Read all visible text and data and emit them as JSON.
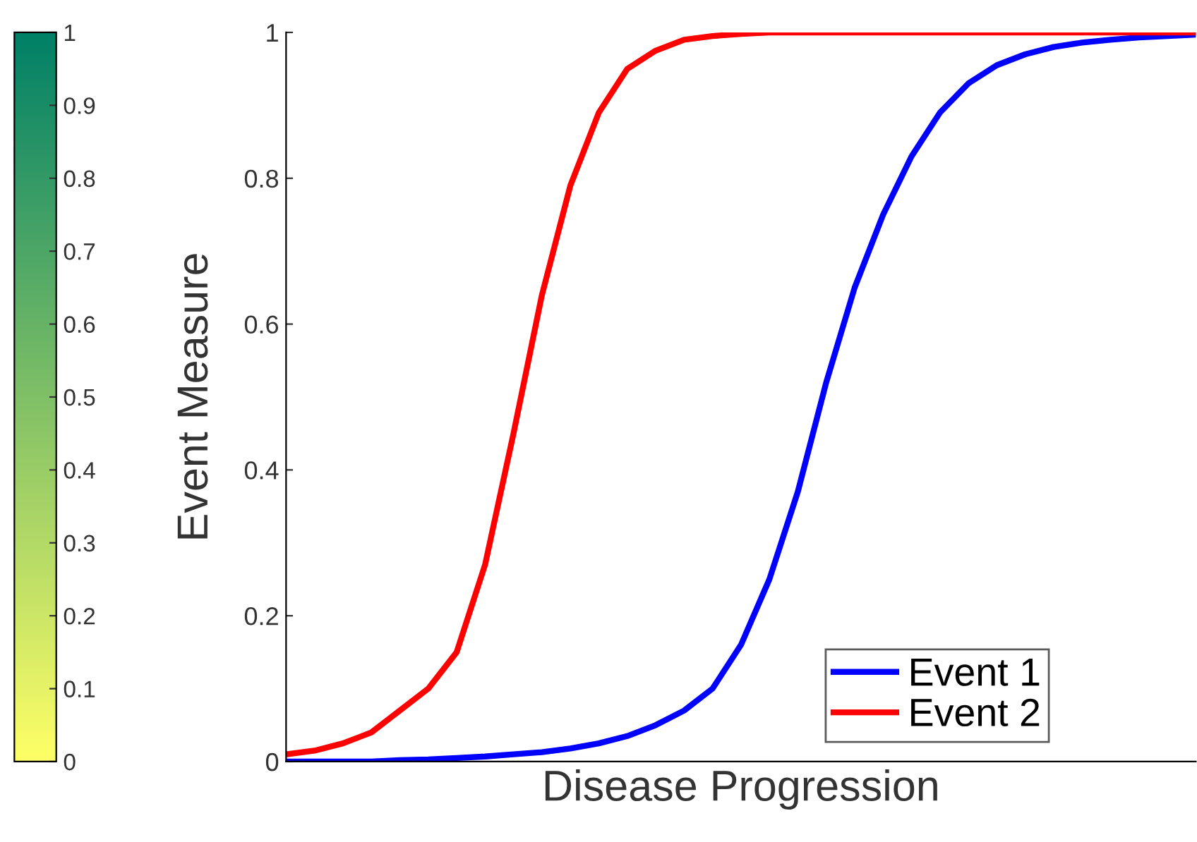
{
  "chart_data": {
    "type": "line",
    "xlabel": "Disease Progression",
    "ylabel": "Event Measure",
    "categories": [
      null,
      null,
      null,
      null,
      null,
      null,
      null,
      null,
      null,
      null,
      null,
      null,
      null,
      null,
      null,
      null,
      null,
      null,
      null,
      null,
      null,
      null,
      null,
      null,
      null,
      null,
      null,
      null,
      null,
      null,
      null,
      null,
      null
    ],
    "series": [
      {
        "name": "Event 1",
        "color": "#0000ff",
        "values": [
          0,
          0,
          0,
          0,
          0.002,
          0.003,
          0.005,
          0.007,
          0.01,
          0.013,
          0.018,
          0.025,
          0.035,
          0.05,
          0.07,
          0.1,
          0.16,
          0.25,
          0.37,
          0.52,
          0.65,
          0.75,
          0.83,
          0.89,
          0.93,
          0.955,
          0.97,
          0.98,
          0.986,
          0.99,
          0.993,
          0.995,
          0.997
        ]
      },
      {
        "name": "Event 2",
        "color": "#ff0000",
        "values": [
          0.01,
          0.015,
          0.025,
          0.04,
          0.07,
          0.1,
          0.15,
          0.27,
          0.45,
          0.64,
          0.79,
          0.89,
          0.95,
          0.975,
          0.99,
          0.995,
          0.998,
          1,
          1,
          1,
          1,
          1,
          1,
          1,
          1,
          1,
          1,
          1,
          1,
          1,
          1,
          1,
          1
        ]
      }
    ],
    "ylim": [
      0,
      1
    ],
    "yticks": [
      0,
      0.2,
      0.4,
      0.6,
      0.8,
      1
    ],
    "tick_labels": "y",
    "grid": false,
    "legend": "bottom right",
    "marker": "none",
    "line_style": "solid",
    "clim": [
      0,
      1
    ],
    "cticks": [
      0,
      0.1,
      0.2,
      0.3,
      0.4,
      0.5,
      0.6,
      0.7,
      0.8,
      0.9,
      1
    ]
  }
}
